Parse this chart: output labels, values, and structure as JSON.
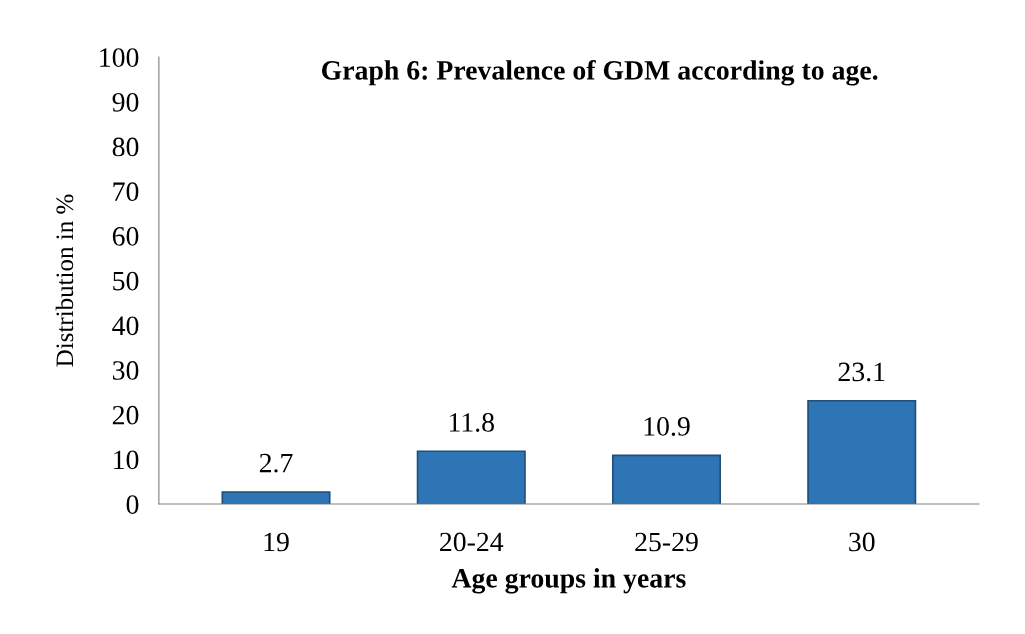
{
  "chart_data": {
    "type": "bar",
    "title": "Graph 6: Prevalence of GDM according to age.",
    "xlabel": "Age groups in years",
    "ylabel": "Distribution in %",
    "categories": [
      "19",
      "20-24",
      "25-29",
      "30"
    ],
    "values": [
      2.7,
      11.8,
      10.9,
      23.1
    ],
    "color": "#2e75b6",
    "ylim": [
      0,
      100
    ],
    "yticks": [
      0,
      10,
      20,
      30,
      40,
      50,
      60,
      70,
      80,
      90,
      100
    ],
    "grid": false,
    "data_labels": true
  }
}
